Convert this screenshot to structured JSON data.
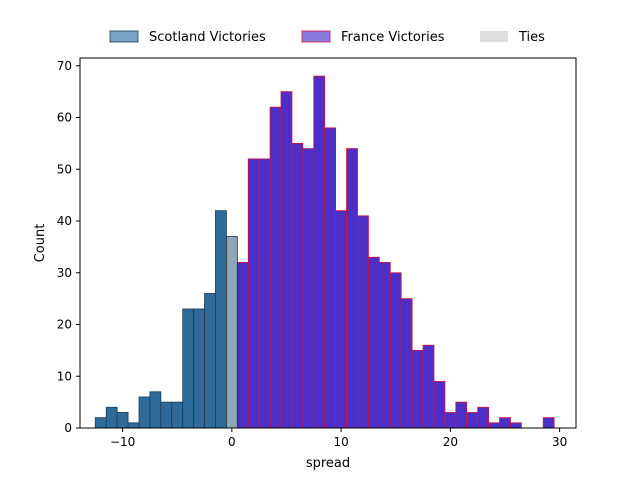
{
  "chart_data": {
    "type": "bar",
    "xlabel": "spread",
    "ylabel": "Count",
    "xlim": [
      -13.9,
      31.5
    ],
    "ylim": [
      0,
      71.5
    ],
    "xticks": [
      -10,
      0,
      10,
      20,
      30
    ],
    "yticks": [
      0,
      10,
      20,
      30,
      40,
      50,
      60,
      70
    ],
    "bin_width": 1,
    "legend_position": "top-outside",
    "series": [
      {
        "name": "Scotland Victories",
        "color": "#2f6b9a",
        "edge_color": "#1a3a55",
        "legend_color": "#7aa3c6",
        "bins": [
          {
            "x": -12,
            "count": 2
          },
          {
            "x": -11,
            "count": 4
          },
          {
            "x": -10,
            "count": 3
          },
          {
            "x": -9,
            "count": 1
          },
          {
            "x": -8,
            "count": 6
          },
          {
            "x": -7,
            "count": 7
          },
          {
            "x": -6,
            "count": 5
          },
          {
            "x": -5,
            "count": 5
          },
          {
            "x": -4,
            "count": 23
          },
          {
            "x": -3,
            "count": 23
          },
          {
            "x": -2,
            "count": 26
          },
          {
            "x": -1,
            "count": 42
          }
        ]
      },
      {
        "name": "France Victories",
        "color": "#4d2fc7",
        "edge_color": "#d0103a",
        "legend_color": "#8a7ae0",
        "bins": [
          {
            "x": 1,
            "count": 32
          },
          {
            "x": 2,
            "count": 52
          },
          {
            "x": 3,
            "count": 52
          },
          {
            "x": 4,
            "count": 62
          },
          {
            "x": 5,
            "count": 65
          },
          {
            "x": 6,
            "count": 55
          },
          {
            "x": 7,
            "count": 54
          },
          {
            "x": 8,
            "count": 68
          },
          {
            "x": 9,
            "count": 58
          },
          {
            "x": 10,
            "count": 42
          },
          {
            "x": 11,
            "count": 54
          },
          {
            "x": 12,
            "count": 41
          },
          {
            "x": 13,
            "count": 33
          },
          {
            "x": 14,
            "count": 32
          },
          {
            "x": 15,
            "count": 30
          },
          {
            "x": 16,
            "count": 25
          },
          {
            "x": 17,
            "count": 15
          },
          {
            "x": 18,
            "count": 16
          },
          {
            "x": 19,
            "count": 9
          },
          {
            "x": 20,
            "count": 3
          },
          {
            "x": 21,
            "count": 5
          },
          {
            "x": 22,
            "count": 3
          },
          {
            "x": 23,
            "count": 4
          },
          {
            "x": 24,
            "count": 1
          },
          {
            "x": 25,
            "count": 2
          },
          {
            "x": 26,
            "count": 1
          },
          {
            "x": 29,
            "count": 2
          }
        ]
      },
      {
        "name": "Ties",
        "color": "#8fa6b8",
        "edge_color": "#2a2a2a",
        "legend_color": "#dddddd",
        "bins": [
          {
            "x": 0,
            "count": 37
          }
        ]
      }
    ]
  }
}
